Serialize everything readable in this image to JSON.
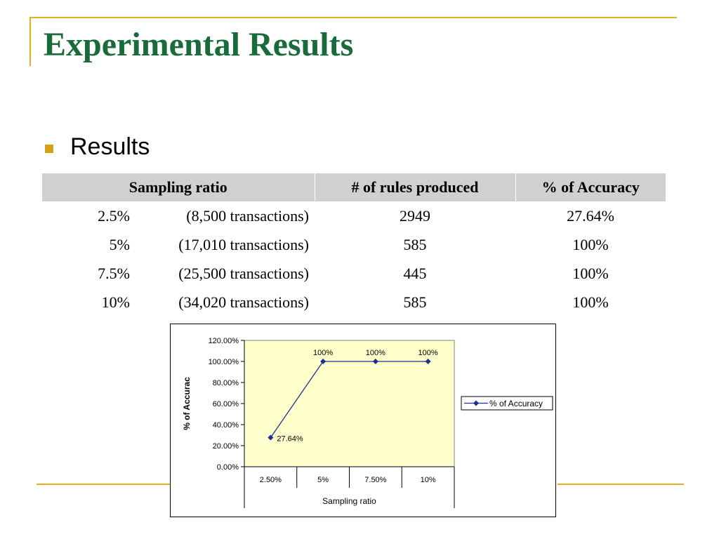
{
  "slide": {
    "title": "Experimental Results",
    "bullet": "Results"
  },
  "table": {
    "headers": [
      "Sampling ratio",
      "# of rules produced",
      "% of Accuracy"
    ],
    "rows": [
      {
        "ratio": "2.5%",
        "transactions": "(8,500 transactions)",
        "rules": "2949",
        "accuracy": "27.64%"
      },
      {
        "ratio": "5%",
        "transactions": "(17,010 transactions)",
        "rules": "585",
        "accuracy": "100%"
      },
      {
        "ratio": "7.5%",
        "transactions": "(25,500 transactions)",
        "rules": "445",
        "accuracy": "100%"
      },
      {
        "ratio": "10%",
        "transactions": "(34,020 transactions)",
        "rules": "585",
        "accuracy": "100%"
      }
    ]
  },
  "colors": {
    "title": "#1A6B3C",
    "accent": "#E0B020",
    "plot_background": "#FFFFCC",
    "series": "#1F2F8F"
  },
  "chart_data": {
    "type": "line",
    "title": "",
    "xlabel": "Sampling ratio",
    "ylabel": "% of Accurac",
    "categories": [
      "2.50%",
      "5%",
      "7.50%",
      "10%"
    ],
    "series": [
      {
        "name": "% of Accuracy",
        "values": [
          27.64,
          100,
          100,
          100
        ],
        "labels": [
          "27.64%",
          "100%",
          "100%",
          "100%"
        ]
      }
    ],
    "ylim": [
      0,
      120
    ],
    "yticks": [
      0,
      20,
      40,
      60,
      80,
      100,
      120
    ],
    "ytick_labels": [
      "0.00%",
      "20.00%",
      "40.00%",
      "60.00%",
      "80.00%",
      "100.00%",
      "120.00%"
    ],
    "grid": false,
    "legend": "right"
  }
}
